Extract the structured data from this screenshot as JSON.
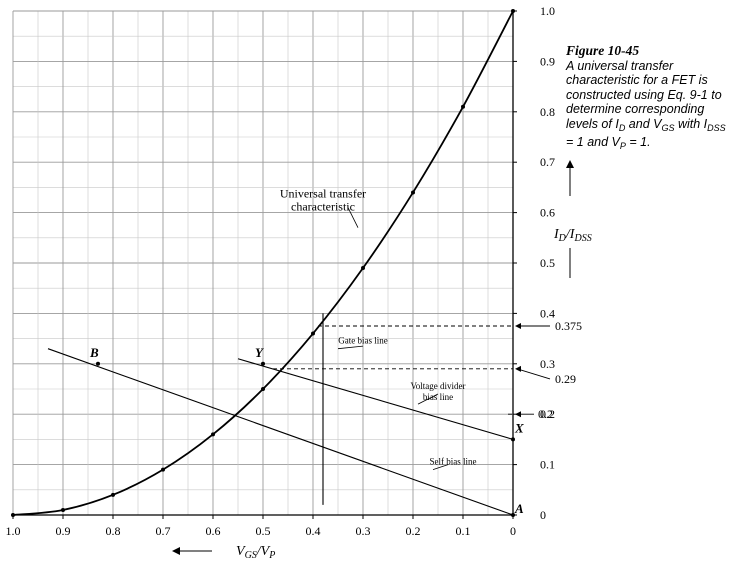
{
  "caption": {
    "figure": "Figure 10-45",
    "line1": "A universal transfer",
    "line2": "characteristic for a FET is",
    "line3": "constructed using Eq. 9-1 to",
    "line4": "determine corresponding",
    "line5_pre": "levels of I",
    "line5_sub1": "D",
    "line5_mid": " and V",
    "line5_sub2": "GS",
    "line5_post": " with I",
    "line5_sub3": "DSS",
    "line6_pre": "= 1 and V",
    "line6_sub": "P",
    "line6_post": " = 1."
  },
  "chart_data": {
    "type": "line",
    "title": "",
    "xlabel": {
      "main": "V",
      "sub1": "GS",
      "slash": "/V",
      "sub2": "P"
    },
    "ylabel": {
      "main": "I",
      "sub1": "D",
      "slash": "/I",
      "sub2": "DSS"
    },
    "x_reversed": true,
    "xlim": [
      0,
      1.0
    ],
    "ylim": [
      0,
      1.0
    ],
    "grid": true,
    "xticks": [
      "1.0",
      "0.9",
      "0.8",
      "0.7",
      "0.6",
      "0.5",
      "0.4",
      "0.3",
      "0.2",
      "0.1",
      "0"
    ],
    "xtick_values": [
      1.0,
      0.9,
      0.8,
      0.7,
      0.6,
      0.5,
      0.4,
      0.3,
      0.2,
      0.1,
      0
    ],
    "yticks": [
      "0",
      "0.1",
      "0.2",
      "0.3",
      "0.4",
      "0.5",
      "0.6",
      "0.7",
      "0.8",
      "0.9",
      "1.0"
    ],
    "ytick_values": [
      0,
      0.1,
      0.2,
      0.3,
      0.4,
      0.5,
      0.6,
      0.7,
      0.8,
      0.9,
      1.0
    ],
    "series": [
      {
        "name": "Universal transfer characteristic",
        "points": [
          [
            1.0,
            0.0
          ],
          [
            0.9,
            0.01
          ],
          [
            0.8,
            0.04
          ],
          [
            0.7,
            0.09
          ],
          [
            0.6,
            0.16
          ],
          [
            0.5,
            0.25
          ],
          [
            0.4,
            0.36
          ],
          [
            0.3,
            0.49
          ],
          [
            0.2,
            0.64
          ],
          [
            0.1,
            0.81
          ],
          [
            0,
            1.0
          ]
        ]
      }
    ],
    "lines": [
      {
        "name": "Self bias line",
        "from": [
          0.93,
          0.33
        ],
        "to": [
          0,
          0
        ]
      },
      {
        "name": "Voltage divider bias line",
        "from": [
          0.55,
          0.31
        ],
        "to": [
          0,
          0.15
        ]
      },
      {
        "name": "Gate bias line",
        "from": [
          0.38,
          0.4
        ],
        "to": [
          0.38,
          0.02
        ]
      }
    ],
    "points": [
      {
        "label": "B",
        "x": 0.83,
        "y": 0.3
      },
      {
        "label": "Y",
        "x": 0.5,
        "y": 0.3
      },
      {
        "label": "X",
        "x": 0,
        "y": 0.15
      },
      {
        "label": "A",
        "x": 0,
        "y": 0
      }
    ],
    "annotations": [
      {
        "text": "Universal transfer characteristic",
        "line1": "Universal transfer",
        "line2": "characteristic",
        "at": [
          0.38,
          0.63
        ]
      },
      {
        "text": "Gate bias line",
        "at": [
          0.3,
          0.34
        ]
      },
      {
        "text": "Voltage divider bias line",
        "line1": "Voltage divider",
        "line2": "bias line",
        "at": [
          0.15,
          0.25
        ]
      },
      {
        "text": "Self bias line",
        "at": [
          0.12,
          0.1
        ]
      }
    ],
    "right_labels": [
      {
        "text": "0.375",
        "y": 0.375
      },
      {
        "text": "0.29",
        "y": 0.29
      },
      {
        "text": "0.2",
        "y": 0.2
      }
    ]
  }
}
